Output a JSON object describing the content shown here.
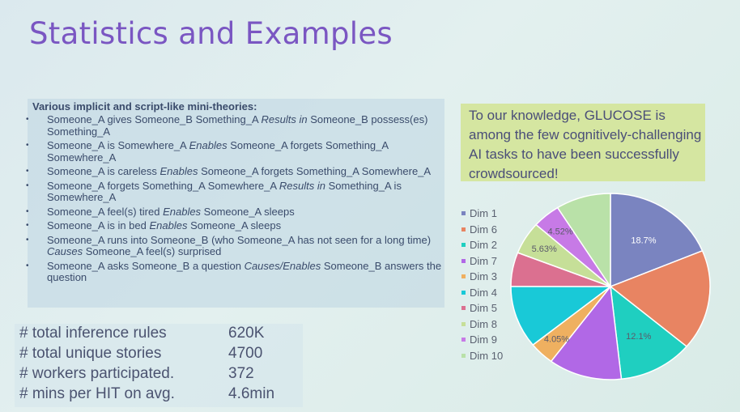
{
  "slide": {
    "title": "Statistics and Examples",
    "list_heading": "Various implicit and script-like mini-theories:",
    "examples": [
      [
        "Someone_A gives Someone_B Something_A ",
        "Results in",
        " Someone_B possess(es) Something_A"
      ],
      [
        "Someone_A is Somewhere_A ",
        "Enables",
        " Someone_A forgets Something_A Somewhere_A"
      ],
      [
        "Someone_A is careless ",
        "Enables",
        " Someone_A forgets Something_A Somewhere_A"
      ],
      [
        "Someone_A forgets Something_A Somewhere_A ",
        "Results in",
        " Something_A is Somewhere_A"
      ],
      [
        "Someone_A feel(s) tired ",
        "Enables",
        " Someone_A sleeps"
      ],
      [
        "Someone_A is in bed ",
        "Enables",
        " Someone_A sleeps"
      ],
      [
        "Someone_A runs into Someone_B (who Someone_A has not seen for a long time) ",
        "Causes",
        " Someone_A feel(s) surprised"
      ],
      [
        "Someone_A asks Someone_B a question ",
        "Causes/Enables",
        " Someone_B answers the question"
      ]
    ],
    "stats": [
      {
        "label": "# total inference rules",
        "value": "620K"
      },
      {
        "label": "# total unique stories",
        "value": "4700"
      },
      {
        "label": "# workers participated.",
        "value": "372"
      },
      {
        "label": "# mins per HIT on avg.",
        "value": "4.6min"
      }
    ],
    "callout": "To our knowledge, GLUCOSE is among the few cognitively-challenging AI tasks to have been successfully crowdsourced!"
  },
  "chart_data": {
    "type": "pie",
    "labels": [
      "Dim 1",
      "Dim 6",
      "Dim 2",
      "Dim 7",
      "Dim 3",
      "Dim 4",
      "Dim 5",
      "Dim 8",
      "Dim 9",
      "Dim 10"
    ],
    "values": [
      18.7,
      17.4,
      12.1,
      11.9,
      4.05,
      10.8,
      5.9,
      5.63,
      4.52,
      8.9
    ],
    "colors": [
      "#7a84c0",
      "#e88462",
      "#1fcfc0",
      "#b168e6",
      "#efb060",
      "#19c9d7",
      "#db7090",
      "#c6df98",
      "#c77ae6",
      "#b9e1a8"
    ],
    "data_labels": {
      "Dim 1": "18.7%",
      "Dim 2": "12.1%",
      "Dim 3": "4.05%",
      "Dim 9": "4.52%",
      "Dim 8": "5.63%"
    },
    "legend_position": "left"
  }
}
